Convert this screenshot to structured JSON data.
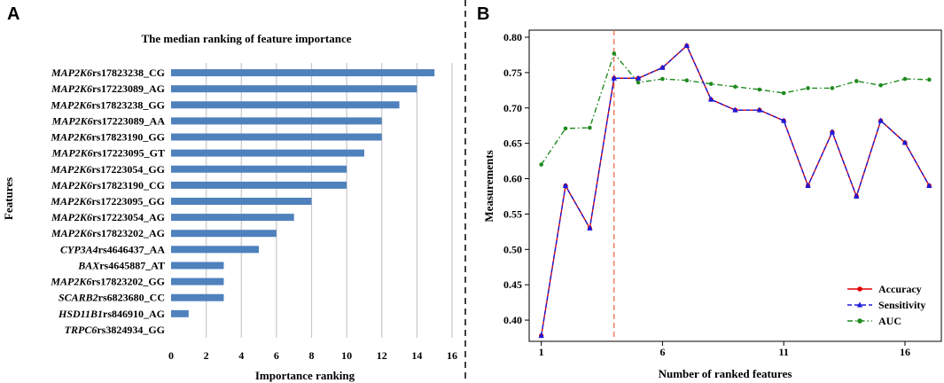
{
  "panels": {
    "a": "A",
    "b": "B"
  },
  "chart_data": [
    {
      "type": "bar",
      "orientation": "horizontal",
      "title": "The median ranking of feature importance",
      "xlabel": "Importance ranking",
      "ylabel": "Features",
      "xlim": [
        0,
        16
      ],
      "xticks": [
        "0",
        "2",
        "4",
        "6",
        "8",
        "10",
        "12",
        "14",
        "16"
      ],
      "grid": true,
      "color": "#4f81bd",
      "categories": [
        {
          "gene": "MAP2K6",
          "snp": "rs17823238_CG"
        },
        {
          "gene": "MAP2K6",
          "snp": "rs17223089_AG"
        },
        {
          "gene": "MAP2K6",
          "snp": "rs17823238_GG"
        },
        {
          "gene": "MAP2K6",
          "snp": "rs17223089_AA"
        },
        {
          "gene": "MAP2K6",
          "snp": "rs17823190_GG"
        },
        {
          "gene": "MAP2K6",
          "snp": "rs17223095_GT"
        },
        {
          "gene": "MAP2K6",
          "snp": "rs17223054_GG"
        },
        {
          "gene": "MAP2K6",
          "snp": "rs17823190_CG"
        },
        {
          "gene": "MAP2K6",
          "snp": "rs17223095_GG"
        },
        {
          "gene": "MAP2K6",
          "snp": "rs17223054_AG"
        },
        {
          "gene": "MAP2K6",
          "snp": "rs17823202_AG"
        },
        {
          "gene": "CYP3A4",
          "snp": "rs4646437_AA"
        },
        {
          "gene": "BAX",
          "snp": "rs4645887_AT"
        },
        {
          "gene": "MAP2K6",
          "snp": "rs17823202_GG"
        },
        {
          "gene": "SCARB2",
          "snp": "rs6823680_CC"
        },
        {
          "gene": "HSD11B1",
          "snp": "rs846910_AG"
        },
        {
          "gene": "TRPC6",
          "snp": "rs3824934_GG"
        }
      ],
      "values": [
        15,
        14,
        13,
        12,
        12,
        11,
        10,
        10,
        8,
        7,
        6,
        5,
        3,
        3,
        3,
        1,
        0
      ]
    },
    {
      "type": "line",
      "xlabel": "Number of ranked features",
      "ylabel": "Measurements",
      "xlim": [
        0.5,
        17.5
      ],
      "ylim": [
        0.37,
        0.81
      ],
      "xticks": [
        "1",
        "6",
        "11",
        "16"
      ],
      "yticks": [
        "0.40",
        "0.45",
        "0.50",
        "0.55",
        "0.60",
        "0.65",
        "0.70",
        "0.75",
        "0.80"
      ],
      "vline_x": 4,
      "vline_color": "#e8643c",
      "x": [
        1,
        2,
        3,
        4,
        5,
        6,
        7,
        8,
        9,
        10,
        11,
        12,
        13,
        14,
        15,
        16,
        17
      ],
      "series": [
        {
          "name": "Accuracy",
          "color": "#e00000",
          "marker": "circle",
          "dash": "solid",
          "values": [
            0.378,
            0.59,
            0.53,
            0.742,
            0.742,
            0.757,
            0.788,
            0.712,
            0.697,
            0.697,
            0.682,
            0.59,
            0.666,
            0.575,
            0.682,
            0.651,
            0.59
          ]
        },
        {
          "name": "Sensitivity",
          "color": "#1a1adc",
          "marker": "triangle",
          "dash": "dashed",
          "values": [
            0.378,
            0.59,
            0.53,
            0.742,
            0.742,
            0.757,
            0.788,
            0.712,
            0.697,
            0.697,
            0.682,
            0.59,
            0.666,
            0.575,
            0.682,
            0.651,
            0.59
          ]
        },
        {
          "name": "AUC",
          "color": "#1f8a1f",
          "marker": "circle",
          "dash": "dashdot",
          "values": [
            0.62,
            0.671,
            0.672,
            0.777,
            0.736,
            0.741,
            0.739,
            0.734,
            0.73,
            0.726,
            0.721,
            0.728,
            0.728,
            0.738,
            0.732,
            0.741,
            0.74
          ]
        }
      ],
      "legend_position": "bottom-right"
    }
  ]
}
